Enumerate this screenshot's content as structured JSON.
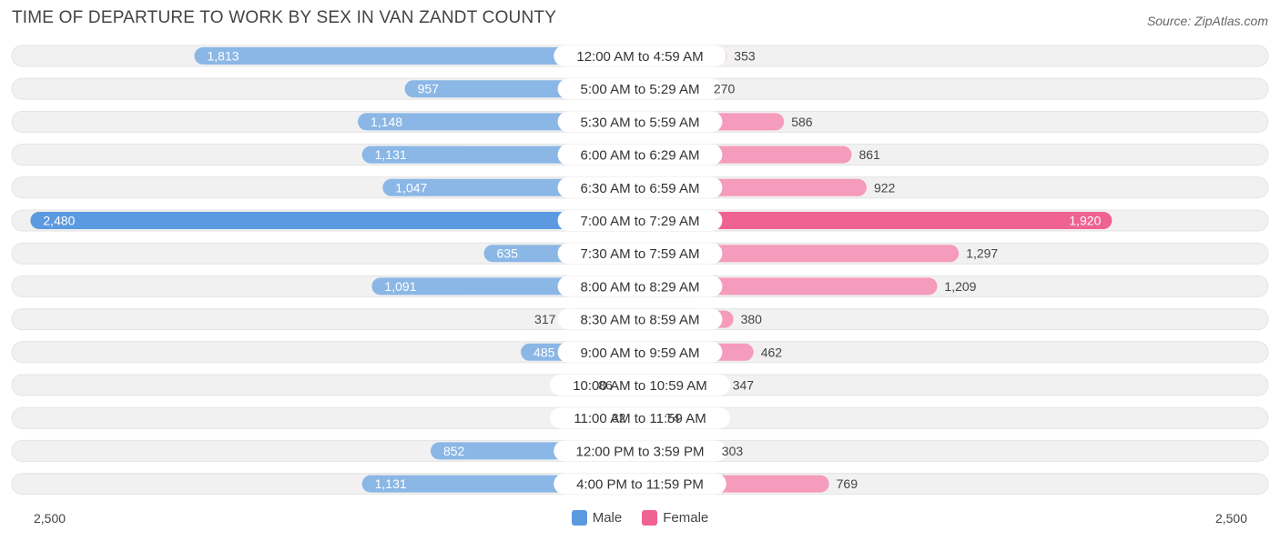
{
  "header": {
    "title": "TIME OF DEPARTURE TO WORK BY SEX IN VAN ZANDT COUNTY",
    "source": "Source: ZipAtlas.com"
  },
  "axis": {
    "left_label": "2,500",
    "right_label": "2,500"
  },
  "legend": {
    "male_label": "Male",
    "female_label": "Female"
  },
  "colors": {
    "male": "#8bb7e6",
    "male_max": "#5b9ae0",
    "female": "#f59bbb",
    "female_max": "#f06292",
    "track": "#f1f1f1"
  },
  "chart_data": {
    "type": "bar",
    "orientation": "horizontal-diverging",
    "title": "TIME OF DEPARTURE TO WORK BY SEX IN VAN ZANDT COUNTY",
    "xlim": [
      0,
      2500
    ],
    "legend": "bottom-center",
    "categories": [
      "12:00 AM to 4:59 AM",
      "5:00 AM to 5:29 AM",
      "5:30 AM to 5:59 AM",
      "6:00 AM to 6:29 AM",
      "6:30 AM to 6:59 AM",
      "7:00 AM to 7:29 AM",
      "7:30 AM to 7:59 AM",
      "8:00 AM to 8:29 AM",
      "8:30 AM to 8:59 AM",
      "9:00 AM to 9:59 AM",
      "10:00 AM to 10:59 AM",
      "11:00 AM to 11:59 AM",
      "12:00 PM to 3:59 PM",
      "4:00 PM to 11:59 PM"
    ],
    "series": [
      {
        "name": "Male",
        "values": [
          1813,
          957,
          1148,
          1131,
          1047,
          2480,
          635,
          1091,
          317,
          485,
          86,
          32,
          852,
          1131
        ],
        "labels": [
          "1,813",
          "957",
          "1,148",
          "1,131",
          "1,047",
          "2,480",
          "635",
          "1,091",
          "317",
          "485",
          "86",
          "32",
          "852",
          "1,131"
        ]
      },
      {
        "name": "Female",
        "values": [
          353,
          270,
          586,
          861,
          922,
          1920,
          1297,
          1209,
          380,
          462,
          347,
          74,
          303,
          769
        ],
        "labels": [
          "353",
          "270",
          "586",
          "861",
          "922",
          "1,920",
          "1,297",
          "1,209",
          "380",
          "462",
          "347",
          "74",
          "303",
          "769"
        ]
      }
    ]
  }
}
